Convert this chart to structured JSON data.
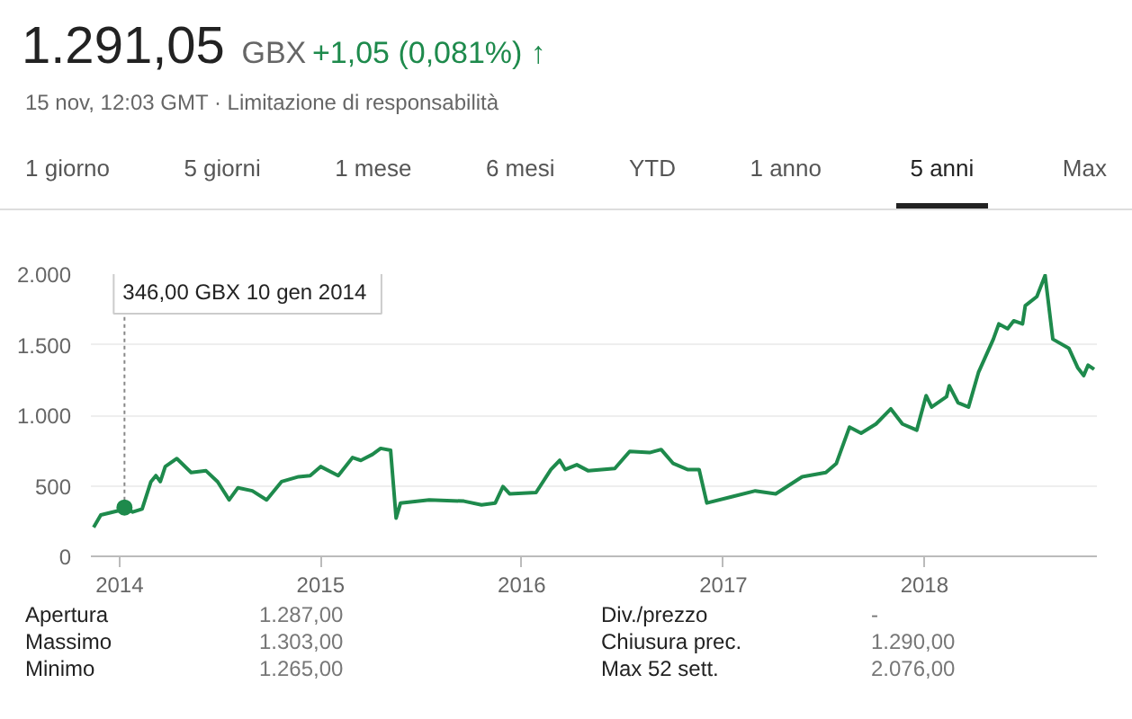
{
  "chart_data": {
    "type": "line",
    "title": "1.291,05",
    "subtitle": "15 nov, 12:03 GMT · Limitazione di responsabilità",
    "annotations": [
      "GBX",
      "+1,05 (0,081%) ↑",
      "1 giorno",
      "5 giorni",
      "1 mese",
      "6 mesi",
      "YTD",
      "1 anno",
      "5 anni",
      "Max",
      "Apertura",
      "1.287,00",
      "Div./prezzo",
      "-",
      "Massimo",
      "1.303,00",
      "Chiusura prec.",
      "1.290,00",
      "Minimo",
      "1.265,00",
      "Max 52 sett.",
      "2.076,00",
      {
        "text": "346,00 GBX  10 gen 2014",
        "x": "2014-01-10",
        "y": 346
      }
    ],
    "x": [
      "2013-11-15",
      "2013-11-28",
      "2013-12-30",
      "2014-01-10",
      "2014-01-25",
      "2014-02-11",
      "2014-02-27",
      "2014-03-08",
      "2014-03-16",
      "2014-03-25",
      "2014-04-15",
      "2014-05-11",
      "2014-06-07",
      "2014-06-28",
      "2014-07-19",
      "2014-08-04",
      "2014-08-30",
      "2014-09-25",
      "2014-10-22",
      "2014-11-22",
      "2014-12-13",
      "2015-01-01",
      "2015-02-02",
      "2015-02-28",
      "2015-03-15",
      "2015-04-05",
      "2015-04-20",
      "2015-05-08",
      "2015-05-18",
      "2015-05-26",
      "2015-07-17",
      "2015-09-18",
      "2015-10-20",
      "2015-11-14",
      "2015-11-28",
      "2015-12-10",
      "2016-01-27",
      "2016-02-23",
      "2016-03-10",
      "2016-03-20",
      "2016-04-10",
      "2016-05-01",
      "2016-06-18",
      "2016-07-15",
      "2016-08-20",
      "2016-09-10",
      "2016-10-02",
      "2016-10-28",
      "2016-11-18",
      "2016-12-02",
      "2017-01-16",
      "2017-02-28",
      "2017-04-06",
      "2017-05-24",
      "2017-07-06",
      "2017-07-25",
      "2017-08-18",
      "2017-09-08",
      "2017-10-05",
      "2017-11-01",
      "2017-11-22",
      "2017-12-18",
      "2018-01-04",
      "2018-01-14",
      "2018-02-10",
      "2018-02-15",
      "2018-03-03",
      "2018-03-22",
      "2018-04-09",
      "2018-05-06",
      "2018-05-16",
      "2018-06-01",
      "2018-06-12",
      "2018-06-28",
      "2018-07-03",
      "2018-07-24",
      "2018-08-08",
      "2018-08-22",
      "2018-09-20",
      "2018-10-06",
      "2018-10-17",
      "2018-10-25",
      "2018-11-05"
    ],
    "series": [
      {
        "color": "#1e8a4c",
        "values": [
          206,
          293,
          323,
          346,
          314,
          335,
          529,
          572,
          529,
          636,
          693,
          594,
          606,
          529,
          400,
          486,
          464,
          400,
          529,
          564,
          572,
          636,
          572,
          700,
          680,
          722,
          765,
          752,
          271,
          378,
          400,
          391,
          365,
          378,
          494,
          443,
          452,
          615,
          680,
          615,
          649,
          606,
          623,
          744,
          735,
          757,
          658,
          615,
          615,
          378,
          422,
          464,
          443,
          564,
          594,
          658,
          916,
          873,
          938,
          1045,
          938,
          894,
          1139,
          1058,
          1131,
          1209,
          1088,
          1058,
          1303,
          1539,
          1647,
          1613,
          1669,
          1647,
          1776,
          1841,
          1991,
          1539,
          1475,
          1338,
          1281,
          1355,
          1325
        ]
      }
    ],
    "xlim": [
      "2013-11-10",
      "2018-11-10"
    ],
    "ylim": [
      0,
      2000
    ],
    "xticks": [
      {
        "value": "2014-01-01",
        "label": "2014"
      },
      {
        "value": "2015-01-01",
        "label": "2015"
      },
      {
        "value": "2016-01-01",
        "label": "2016"
      },
      {
        "value": "2017-01-01",
        "label": "2017"
      },
      {
        "value": "2018-01-01",
        "label": "2018"
      }
    ],
    "yticks": [
      0,
      500,
      {
        "value": 1000,
        "label": "1.000"
      },
      {
        "value": 1500,
        "label": "1.500"
      },
      {
        "value": 2000,
        "label": "2.000"
      }
    ],
    "grid": "y"
  }
}
